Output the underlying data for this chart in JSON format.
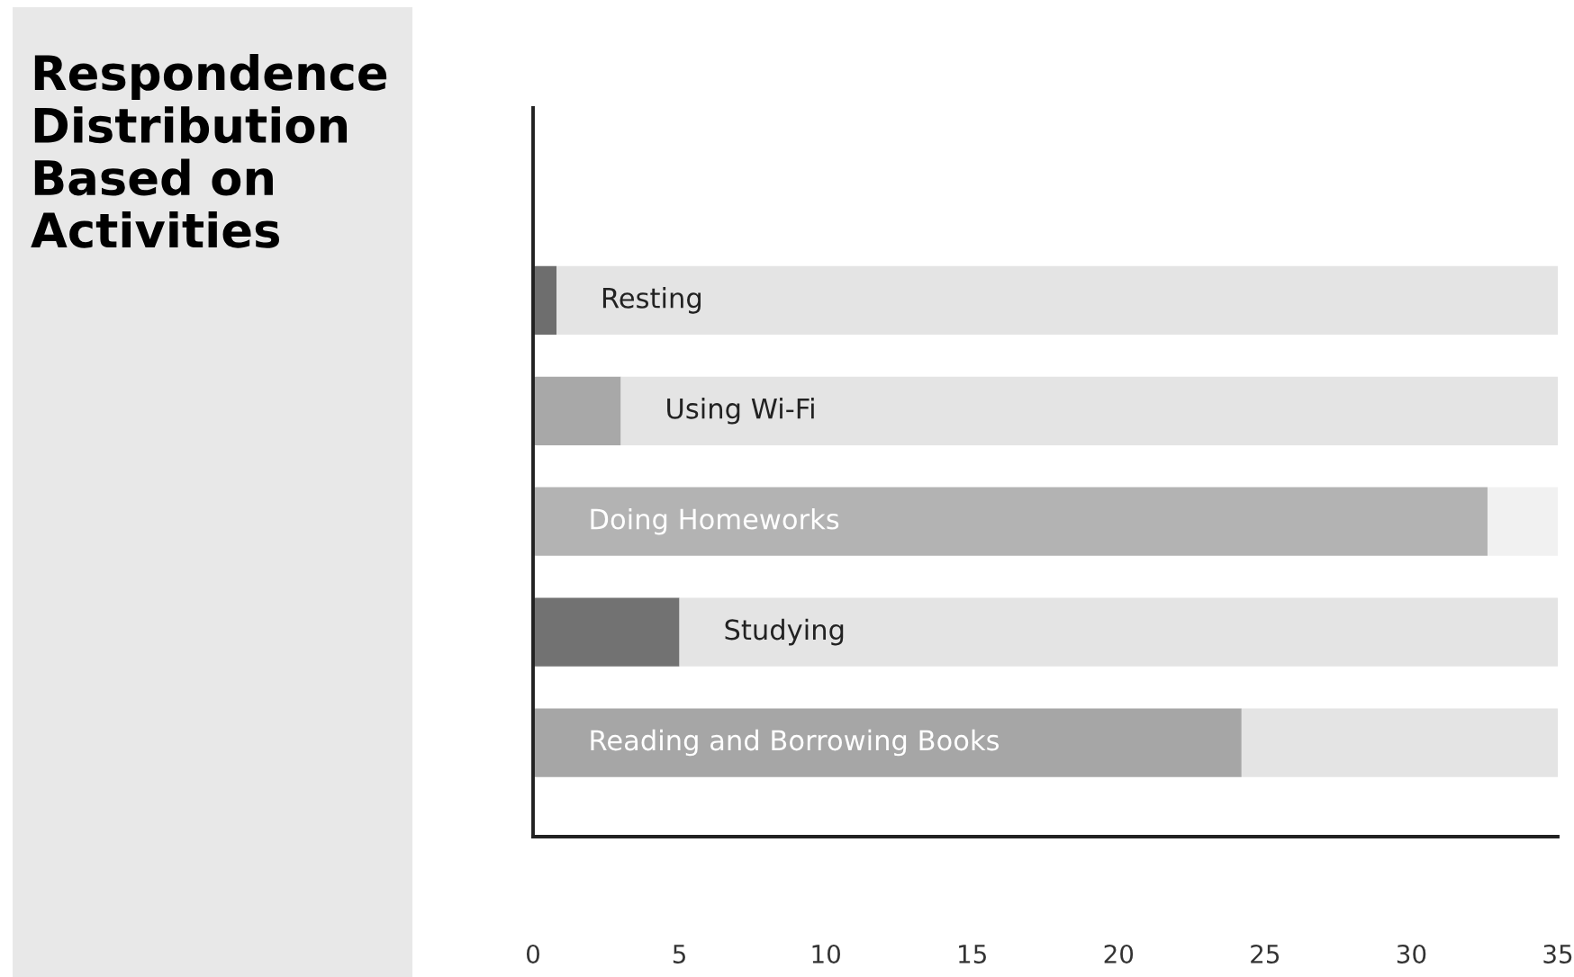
{
  "chart_data": {
    "type": "bar",
    "orientation": "horizontal",
    "stacked": true,
    "title": "Respondence Distribution Based on Activities",
    "categories": [
      "Resting",
      "Using Wi-Fi",
      "Doing Homeworks",
      "Studying",
      "Reading and Borrowing Books"
    ],
    "series": [
      {
        "colors": [
          "#6e6e6e",
          "#a8a8a8",
          "#b3b3b3",
          "#727272",
          "#a6a6a6"
        ],
        "values": [
          0.8,
          3,
          32.6,
          5,
          24.2
        ]
      },
      {
        "colors": [
          "#e4e4e4",
          "#e4e4e4",
          "#f1f1f1",
          "#e4e4e4",
          "#e4e4e4"
        ],
        "values": [
          34.2,
          32,
          2.4,
          30,
          10.8
        ]
      }
    ],
    "xlim": [
      0,
      35
    ],
    "xticks": [
      0,
      5,
      10,
      15,
      20,
      25,
      30,
      35
    ],
    "grid": false,
    "legend": false
  }
}
